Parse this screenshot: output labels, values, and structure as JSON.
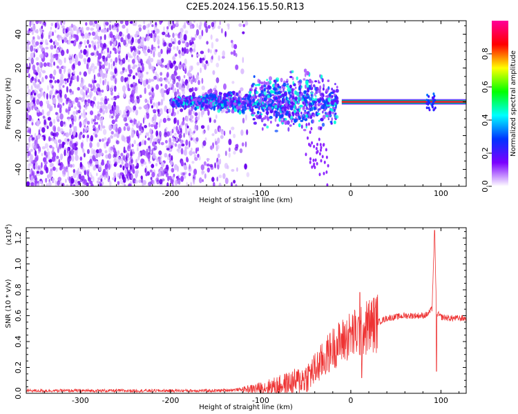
{
  "figure": {
    "title": "C2E5.2024.156.15.50.R13"
  },
  "chart_data": [
    {
      "type": "heatmap",
      "name": "spectrogram",
      "title": "C2E5.2024.156.15.50.R13",
      "xlabel": "Height of straight line (km)",
      "ylabel": "Frequency (Hz)",
      "xlim": [
        -360,
        128
      ],
      "ylim": [
        -50,
        48
      ],
      "xticks": [
        "-300",
        "-200",
        "-100",
        "0",
        "100"
      ],
      "yticks": [
        "-40",
        "-20",
        "0",
        "20",
        "40"
      ],
      "colorbar": {
        "label": "Normalized spectral amplitude",
        "range": [
          0,
          1
        ],
        "ticks": [
          "0.0",
          "0.2",
          "0.4",
          "0.6",
          "0.8"
        ],
        "colormap": [
          "#ffffff",
          "#7b00ff",
          "#0033ff",
          "#00ffff",
          "#00ff00",
          "#ffff00",
          "#ff0000",
          "#ff0099"
        ]
      },
      "features": {
        "noise_region_x": [
          -360,
          -200
        ],
        "signal_line_frequency": 0,
        "signal_start_x": -200,
        "strong_signal_start_x": -15
      }
    },
    {
      "type": "line",
      "name": "snr",
      "xlabel": "Height of straight line (km)",
      "ylabel": "SNR (10 * v/v)",
      "yscale_note": "(x10^4)",
      "xlim": [
        -360,
        128
      ],
      "ylim": [
        0,
        1.28
      ],
      "xticks": [
        "-300",
        "-200",
        "-100",
        "0",
        "100"
      ],
      "yticks": [
        "0.0",
        "0.2",
        "0.4",
        "0.6",
        "0.8",
        "1.0",
        "1.2"
      ],
      "grid": false,
      "series": [
        {
          "color": "#ee3333",
          "x": [
            -360,
            -300,
            -250,
            -200,
            -150,
            -120,
            -100,
            -80,
            -60,
            -50,
            -40,
            -30,
            -20,
            -10,
            0,
            10,
            20,
            30,
            40,
            50,
            60,
            70,
            80,
            85,
            90,
            93,
            95,
            100,
            110,
            128
          ],
          "y": [
            0.02,
            0.02,
            0.02,
            0.02,
            0.02,
            0.03,
            0.04,
            0.06,
            0.09,
            0.12,
            0.18,
            0.26,
            0.35,
            0.4,
            0.45,
            0.47,
            0.52,
            0.55,
            0.58,
            0.59,
            0.6,
            0.6,
            0.6,
            0.61,
            0.65,
            1.26,
            0.62,
            0.59,
            0.58,
            0.58
          ]
        }
      ]
    }
  ]
}
